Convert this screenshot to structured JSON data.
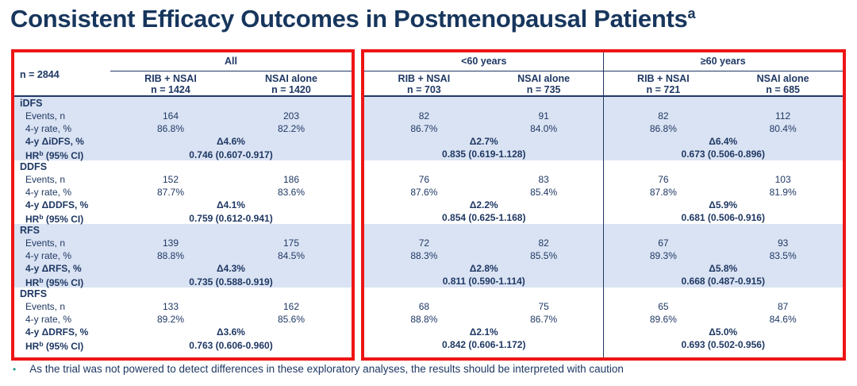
{
  "title": {
    "text": "Consistent Efficacy Outcomes in Postmenopausal Patients",
    "superscript": "a"
  },
  "colors": {
    "navy_text": "#1f3864",
    "title_navy": "#17365d",
    "band_blue": "#dae3f3",
    "red_border": "#ee1515",
    "bullet_teal": "#1a9c8c"
  },
  "table": {
    "n_total": "n = 2844",
    "groups": [
      {
        "label": "All",
        "arms": [
          {
            "name": "RIB + NSAI",
            "n": "n = 1424"
          },
          {
            "name": "NSAI alone",
            "n": "n = 1420"
          }
        ]
      },
      {
        "label": "<60 years",
        "arms": [
          {
            "name": "RIB + NSAI",
            "n": "n = 703"
          },
          {
            "name": "NSAI alone",
            "n": "n = 735"
          }
        ]
      },
      {
        "label": "≥60 years",
        "arms": [
          {
            "name": "RIB + NSAI",
            "n": "n = 721"
          },
          {
            "name": "NSAI alone",
            "n": "n = 685"
          }
        ]
      }
    ],
    "row_labels": {
      "events": "Events, n",
      "rate": "4-y rate, %",
      "hr_prefix": "HR",
      "hr_sup": "b",
      "hr_suffix": " (95% CI)"
    },
    "sections": [
      {
        "name": "iDFS",
        "delta_label": "4-y ΔiDFS, %",
        "events": [
          "164",
          "203",
          "82",
          "91",
          "82",
          "112"
        ],
        "rates": [
          "86.8%",
          "82.2%",
          "86.7%",
          "84.0%",
          "86.8%",
          "80.4%"
        ],
        "deltas": [
          "Δ4.6%",
          "Δ2.7%",
          "Δ6.4%"
        ],
        "hrs": [
          "0.746 (0.607-0.917)",
          "0.835 (0.619-1.128)",
          "0.673 (0.506-0.896)"
        ]
      },
      {
        "name": "DDFS",
        "delta_label": "4-y ΔDDFS, %",
        "events": [
          "152",
          "186",
          "76",
          "83",
          "76",
          "103"
        ],
        "rates": [
          "87.7%",
          "83.6%",
          "87.6%",
          "85.4%",
          "87.8%",
          "81.9%"
        ],
        "deltas": [
          "Δ4.1%",
          "Δ2.2%",
          "Δ5.9%"
        ],
        "hrs": [
          "0.759 (0.612-0.941)",
          "0.854 (0.625-1.168)",
          "0.681 (0.506-0.916)"
        ]
      },
      {
        "name": "RFS",
        "delta_label": "4-y ΔRFS, %",
        "events": [
          "139",
          "175",
          "72",
          "82",
          "67",
          "93"
        ],
        "rates": [
          "88.8%",
          "84.5%",
          "88.3%",
          "85.5%",
          "89.3%",
          "83.5%"
        ],
        "deltas": [
          "Δ4.3%",
          "Δ2.8%",
          "Δ5.8%"
        ],
        "hrs": [
          "0.735 (0.588-0.919)",
          "0.811 (0.590-1.114)",
          "0.668 (0.487-0.915)"
        ]
      },
      {
        "name": "DRFS",
        "delta_label": "4-y ΔDRFS, %",
        "events": [
          "133",
          "162",
          "68",
          "75",
          "65",
          "87"
        ],
        "rates": [
          "89.2%",
          "85.6%",
          "88.8%",
          "86.7%",
          "89.6%",
          "84.6%"
        ],
        "deltas": [
          "Δ3.6%",
          "Δ2.1%",
          "Δ5.0%"
        ],
        "hrs": [
          "0.763 (0.606-0.960)",
          "0.842 (0.606-1.172)",
          "0.693 (0.502-0.956)"
        ]
      }
    ]
  },
  "footnote": {
    "bullet": "•",
    "text": "As the trial was not powered to detect differences in these exploratory analyses, the results should be interpreted with caution"
  }
}
